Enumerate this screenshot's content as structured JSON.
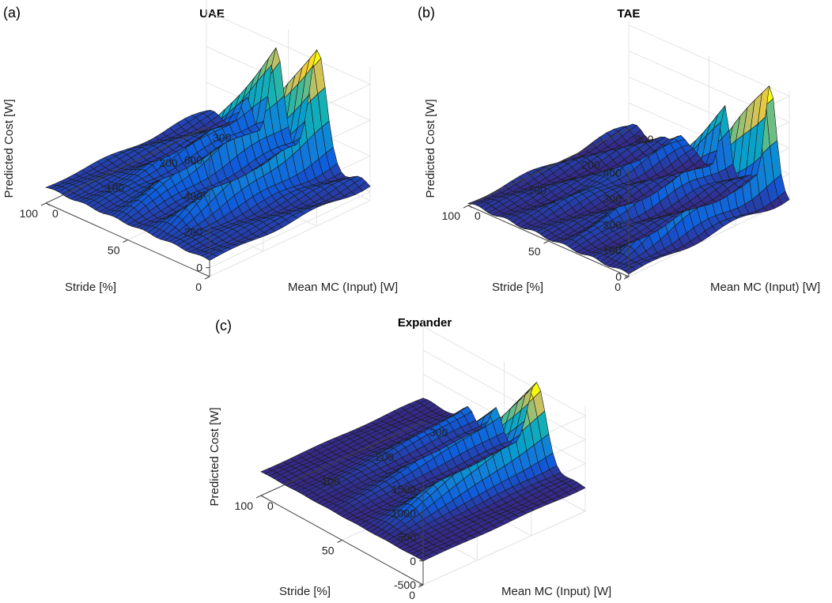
{
  "chart_data": [
    {
      "panel": "(a)",
      "type": "surface",
      "title": "UAE",
      "xlabel": "Stride [%]",
      "ylabel": "Mean MC (Input) [W]",
      "zlabel": "Predicted Cost [W]",
      "xlim": [
        0,
        100
      ],
      "ylim": [
        0,
        300
      ],
      "zlim": [
        -50,
        700
      ],
      "xticks": [
        "0",
        "50",
        "100"
      ],
      "yticks": [
        "0",
        "100",
        "200",
        "300"
      ],
      "zticks": [
        "0",
        "200",
        "400",
        "600"
      ],
      "peaks": [
        {
          "stride": 32,
          "input": 300,
          "height": 640,
          "width": 7
        },
        {
          "stride": 57,
          "input": 300,
          "height": 520,
          "width": 6
        },
        {
          "stride": 75,
          "input": 300,
          "height": 170,
          "width": 5
        }
      ],
      "baseline": 40
    },
    {
      "panel": "(b)",
      "type": "surface",
      "title": "TAE",
      "xlabel": "Stride [%]",
      "ylabel": "Mean MC (Input) [W]",
      "zlabel": "Predicted Cost [W]",
      "xlim": [
        0,
        100
      ],
      "ylim": [
        0,
        300
      ],
      "zlim": [
        0,
        420
      ],
      "xticks": [
        "0",
        "50",
        "100"
      ],
      "yticks": [
        "0",
        "100",
        "200",
        "300"
      ],
      "zticks": [
        "0",
        "100",
        "200",
        "300",
        "400"
      ],
      "peaks": [
        {
          "stride": 12,
          "input": 300,
          "height": 410,
          "width": 5
        },
        {
          "stride": 40,
          "input": 300,
          "height": 230,
          "width": 4
        },
        {
          "stride": 68,
          "input": 300,
          "height": 70,
          "width": 5
        }
      ],
      "baseline": 10
    },
    {
      "panel": "(c)",
      "type": "surface",
      "title": "Expander",
      "xlabel": "Stride [%]",
      "ylabel": "Mean MC (Input) [W]",
      "zlabel": "Predicted Cost [W]",
      "xlim": [
        0,
        100
      ],
      "ylim": [
        0,
        300
      ],
      "zlim": [
        -500,
        1700
      ],
      "xticks": [
        "0",
        "50",
        "100"
      ],
      "yticks": [
        "0",
        "100",
        "200",
        "300"
      ],
      "zticks": [
        "-500",
        "0",
        "500",
        "1000",
        "1500"
      ],
      "peaks": [
        {
          "stride": 30,
          "input": 300,
          "height": 1650,
          "width": 8
        },
        {
          "stride": 55,
          "input": 300,
          "height": 650,
          "width": 5
        },
        {
          "stride": 72,
          "input": 300,
          "height": 350,
          "width": 5
        }
      ],
      "baseline": 0
    }
  ]
}
